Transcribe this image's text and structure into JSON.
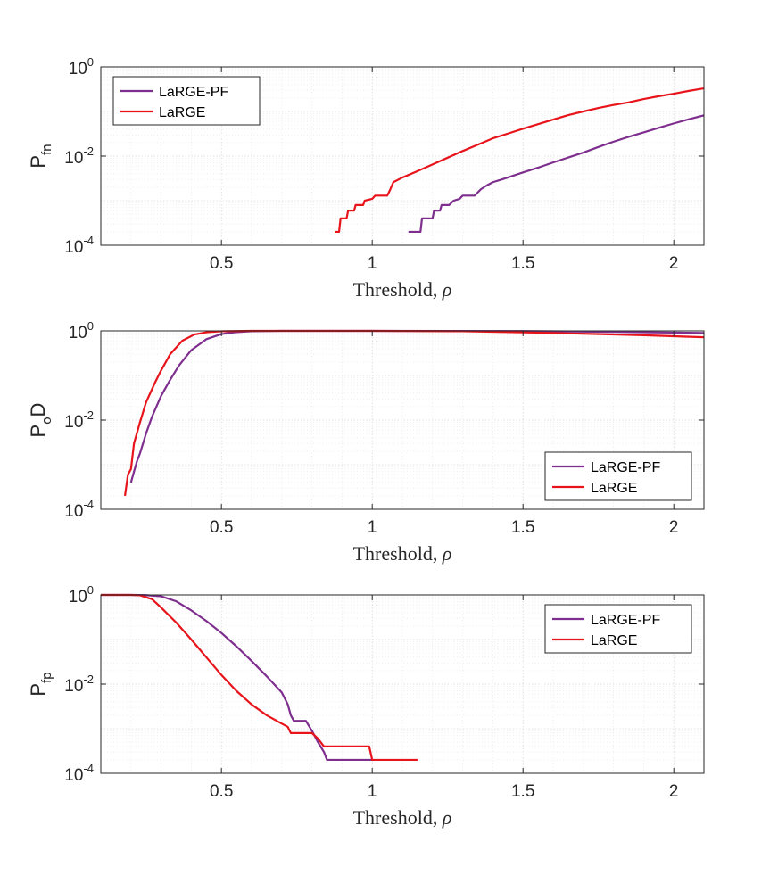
{
  "colors": {
    "LaRGE-PF": "#7e2f8e",
    "LaRGE": "#e8141b"
  },
  "chart_data": [
    {
      "type": "line",
      "ylabel_main": "P",
      "ylabel_sub": "fn",
      "xlabel": "Threshold, ",
      "xlabel_symbol": "ρ",
      "xlim": [
        0.1,
        2.1
      ],
      "yscale": "log",
      "ylim": [
        0.0001,
        1
      ],
      "xticks": [
        0.5,
        1,
        1.5,
        2
      ],
      "xtick_labels": [
        "0.5",
        "1",
        "1.5",
        "2"
      ],
      "ytick_exponents": [
        "-4",
        "-2",
        "0"
      ],
      "ytick_base": "10",
      "grid": true,
      "legend_position": "top-left",
      "series": [
        {
          "name": "LaRGE-PF",
          "points": [
            [
              1.12,
              0.0002
            ],
            [
              1.16,
              0.0002
            ],
            [
              1.165,
              0.0004
            ],
            [
              1.2,
              0.0004
            ],
            [
              1.205,
              0.0006
            ],
            [
              1.225,
              0.0006
            ],
            [
              1.23,
              0.0008
            ],
            [
              1.255,
              0.0008
            ],
            [
              1.27,
              0.001
            ],
            [
              1.29,
              0.0011
            ],
            [
              1.3,
              0.0013
            ],
            [
              1.34,
              0.0013
            ],
            [
              1.36,
              0.0018
            ],
            [
              1.38,
              0.0022
            ],
            [
              1.4,
              0.0026
            ],
            [
              1.43,
              0.003
            ],
            [
              1.46,
              0.0035
            ],
            [
              1.5,
              0.0043
            ],
            [
              1.55,
              0.0055
            ],
            [
              1.6,
              0.0072
            ],
            [
              1.65,
              0.0093
            ],
            [
              1.7,
              0.012
            ],
            [
              1.75,
              0.016
            ],
            [
              1.8,
              0.021
            ],
            [
              1.85,
              0.027
            ],
            [
              1.9,
              0.034
            ],
            [
              1.95,
              0.043
            ],
            [
              2.0,
              0.054
            ],
            [
              2.05,
              0.067
            ],
            [
              2.1,
              0.082
            ]
          ]
        },
        {
          "name": "LaRGE",
          "points": [
            [
              0.875,
              0.0002
            ],
            [
              0.89,
              0.0002
            ],
            [
              0.895,
              0.0004
            ],
            [
              0.915,
              0.0004
            ],
            [
              0.92,
              0.0006
            ],
            [
              0.94,
              0.0006
            ],
            [
              0.945,
              0.0008
            ],
            [
              0.97,
              0.0008
            ],
            [
              0.975,
              0.001
            ],
            [
              1.0,
              0.0011
            ],
            [
              1.01,
              0.0013
            ],
            [
              1.05,
              0.0013
            ],
            [
              1.06,
              0.0018
            ],
            [
              1.07,
              0.0026
            ],
            [
              1.1,
              0.0033
            ],
            [
              1.15,
              0.0046
            ],
            [
              1.2,
              0.0065
            ],
            [
              1.25,
              0.0092
            ],
            [
              1.3,
              0.013
            ],
            [
              1.35,
              0.018
            ],
            [
              1.4,
              0.025
            ],
            [
              1.45,
              0.032
            ],
            [
              1.5,
              0.041
            ],
            [
              1.55,
              0.052
            ],
            [
              1.6,
              0.066
            ],
            [
              1.65,
              0.083
            ],
            [
              1.7,
              0.1
            ],
            [
              1.75,
              0.12
            ],
            [
              1.8,
              0.14
            ],
            [
              1.85,
              0.16
            ],
            [
              1.9,
              0.19
            ],
            [
              1.95,
              0.22
            ],
            [
              2.0,
              0.25
            ],
            [
              2.05,
              0.29
            ],
            [
              2.1,
              0.33
            ]
          ]
        }
      ]
    },
    {
      "type": "line",
      "ylabel_main": "P",
      "ylabel_sub": "o",
      "ylabel_tail": "D",
      "xlabel": "Threshold, ",
      "xlabel_symbol": "ρ",
      "xlim": [
        0.1,
        2.1
      ],
      "yscale": "log",
      "ylim": [
        0.0001,
        1
      ],
      "xticks": [
        0.5,
        1,
        1.5,
        2
      ],
      "xtick_labels": [
        "0.5",
        "1",
        "1.5",
        "2"
      ],
      "ytick_exponents": [
        "-4",
        "-2",
        "0"
      ],
      "ytick_base": "10",
      "grid": true,
      "legend_position": "bottom-right",
      "series": [
        {
          "name": "LaRGE-PF",
          "points": [
            [
              0.2,
              0.0004
            ],
            [
              0.21,
              0.0007
            ],
            [
              0.22,
              0.0012
            ],
            [
              0.23,
              0.0018
            ],
            [
              0.25,
              0.005
            ],
            [
              0.27,
              0.012
            ],
            [
              0.3,
              0.035
            ],
            [
              0.33,
              0.08
            ],
            [
              0.36,
              0.17
            ],
            [
              0.4,
              0.37
            ],
            [
              0.45,
              0.65
            ],
            [
              0.5,
              0.85
            ],
            [
              0.55,
              0.94
            ],
            [
              0.6,
              0.98
            ],
            [
              0.7,
              1.0
            ],
            [
              1.0,
              1.0
            ],
            [
              1.5,
              0.99
            ],
            [
              1.8,
              0.95
            ],
            [
              2.1,
              0.9
            ]
          ]
        },
        {
          "name": "LaRGE",
          "points": [
            [
              0.18,
              0.0002
            ],
            [
              0.19,
              0.0006
            ],
            [
              0.2,
              0.0008
            ],
            [
              0.21,
              0.003
            ],
            [
              0.23,
              0.009
            ],
            [
              0.25,
              0.025
            ],
            [
              0.28,
              0.07
            ],
            [
              0.3,
              0.13
            ],
            [
              0.33,
              0.3
            ],
            [
              0.37,
              0.6
            ],
            [
              0.41,
              0.83
            ],
            [
              0.45,
              0.93
            ],
            [
              0.5,
              0.98
            ],
            [
              0.6,
              1.0
            ],
            [
              1.0,
              1.0
            ],
            [
              1.3,
              0.98
            ],
            [
              1.6,
              0.9
            ],
            [
              1.9,
              0.8
            ],
            [
              2.1,
              0.72
            ]
          ]
        }
      ]
    },
    {
      "type": "line",
      "ylabel_main": "P",
      "ylabel_sub": "fp",
      "xlabel": "Threshold, ",
      "xlabel_symbol": "ρ",
      "xlim": [
        0.1,
        2.1
      ],
      "yscale": "log",
      "ylim": [
        0.0001,
        1
      ],
      "xticks": [
        0.5,
        1,
        1.5,
        2
      ],
      "xtick_labels": [
        "0.5",
        "1",
        "1.5",
        "2"
      ],
      "ytick_exponents": [
        "-4",
        "-2",
        "0"
      ],
      "ytick_base": "10",
      "grid": true,
      "legend_position": "top-right",
      "series": [
        {
          "name": "LaRGE-PF",
          "points": [
            [
              0.1,
              1.0
            ],
            [
              0.2,
              1.0
            ],
            [
              0.25,
              0.99
            ],
            [
              0.3,
              0.93
            ],
            [
              0.35,
              0.72
            ],
            [
              0.4,
              0.45
            ],
            [
              0.45,
              0.26
            ],
            [
              0.5,
              0.14
            ],
            [
              0.55,
              0.07
            ],
            [
              0.6,
              0.033
            ],
            [
              0.65,
              0.015
            ],
            [
              0.7,
              0.0065
            ],
            [
              0.72,
              0.0035
            ],
            [
              0.73,
              0.002
            ],
            [
              0.74,
              0.0015
            ],
            [
              0.78,
              0.0015
            ],
            [
              0.8,
              0.0009
            ],
            [
              0.82,
              0.0005
            ],
            [
              0.84,
              0.0003
            ],
            [
              0.85,
              0.0002
            ],
            [
              1.0,
              0.0002
            ]
          ]
        },
        {
          "name": "LaRGE",
          "points": [
            [
              0.1,
              1.0
            ],
            [
              0.2,
              1.0
            ],
            [
              0.23,
              0.98
            ],
            [
              0.27,
              0.8
            ],
            [
              0.3,
              0.52
            ],
            [
              0.35,
              0.24
            ],
            [
              0.4,
              0.1
            ],
            [
              0.45,
              0.04
            ],
            [
              0.5,
              0.016
            ],
            [
              0.55,
              0.007
            ],
            [
              0.6,
              0.0035
            ],
            [
              0.65,
              0.002
            ],
            [
              0.7,
              0.0013
            ],
            [
              0.72,
              0.0011
            ],
            [
              0.73,
              0.0008
            ],
            [
              0.8,
              0.0008
            ],
            [
              0.82,
              0.0006
            ],
            [
              0.84,
              0.0004
            ],
            [
              0.99,
              0.0004
            ],
            [
              1.0,
              0.0002
            ],
            [
              1.15,
              0.0002
            ]
          ]
        }
      ]
    }
  ]
}
